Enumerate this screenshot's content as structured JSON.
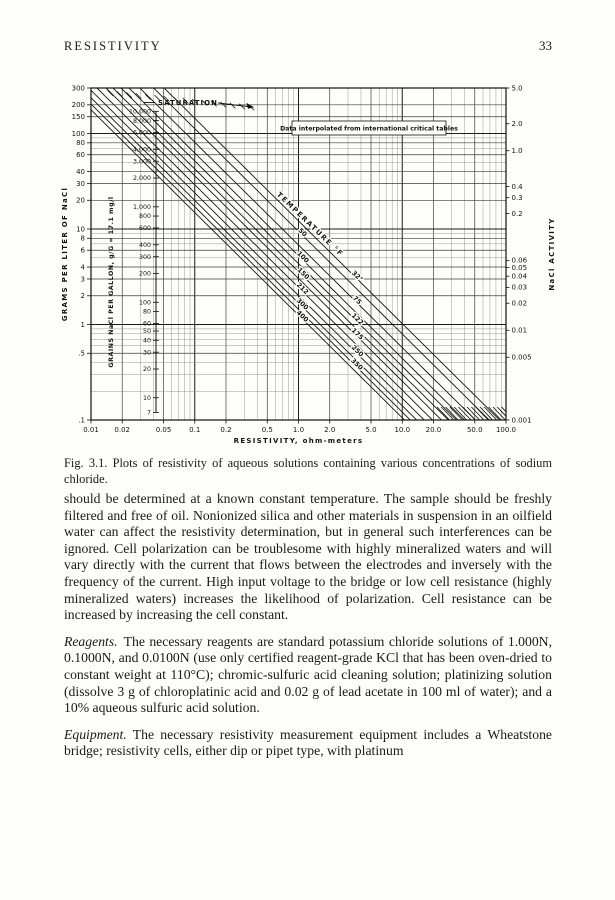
{
  "page": {
    "header": "RESISTIVITY",
    "page_number": "33"
  },
  "figure": {
    "caption": "Fig. 3.1. Plots of resistivity of aqueous solutions containing various concentrations of sodium chloride."
  },
  "paragraphs": [
    {
      "lead": "",
      "text": "should be determined at a known constant temperature. The sample should be freshly filtered and free of oil. Nonionized silica and other materials in suspension in an oilfield water can affect the resistivity determination, but in general such interferences can be ignored. Cell polarization can be troublesome with highly mineralized waters and will vary directly with the current that flows between the electrodes and inversely with the frequency of the current. High input voltage to the bridge or low cell resistance (highly mineralized waters) increases the likelihood of polarization. Cell resistance can be increased by increasing the cell constant."
    },
    {
      "lead": "Reagents.",
      "text": "The necessary reagents are standard potassium chloride solutions of 1.000N, 0.1000N, and 0.0100N (use only certified reagent-grade KCl that has been oven-dried to constant weight at 110°C); chromic-sulfuric acid cleaning solution; platinizing solution (dissolve 3 g of chloroplatinic acid and 0.02 g of lead acetate in 100 ml of water); and a 10% aqueous sulfuric acid solution."
    },
    {
      "lead": "Equipment.",
      "text": "The necessary resistivity measurement equipment includes a Wheatstone bridge; resistivity cells, either dip or pipet type, with platinum"
    }
  ],
  "chart_data": {
    "type": "line",
    "title": "",
    "note": "Data interpolated from international critical tables",
    "saturation_label": "SATURATION",
    "xlabel": "RESISTIVITY, ohm-meters",
    "xlim": [
      0.01,
      100
    ],
    "x_scale": "log",
    "x_ticks": [
      {
        "v": 0.01,
        "label": "0.01"
      },
      {
        "v": 0.02,
        "label": "0.02"
      },
      {
        "v": 0.05,
        "label": "0.05"
      },
      {
        "v": 0.1,
        "label": "0.1"
      },
      {
        "v": 0.2,
        "label": "0.2"
      },
      {
        "v": 0.5,
        "label": "0.5"
      },
      {
        "v": 1,
        "label": "1.0"
      },
      {
        "v": 2,
        "label": "2.0"
      },
      {
        "v": 5,
        "label": "5.0"
      },
      {
        "v": 10,
        "label": "10.0"
      },
      {
        "v": 20,
        "label": "20.0"
      },
      {
        "v": 50,
        "label": "50.0"
      },
      {
        "v": 100,
        "label": "100.0"
      }
    ],
    "y_left_label": "GRAMS PER LITER OF NaCl",
    "ylim_left": [
      0.1,
      300
    ],
    "y_scale": "log",
    "y_left_ticks": [
      {
        "v": 300,
        "label": "300"
      },
      {
        "v": 200,
        "label": "200"
      },
      {
        "v": 150,
        "label": "150"
      },
      {
        "v": 100,
        "label": "100"
      },
      {
        "v": 80,
        "label": "80"
      },
      {
        "v": 60,
        "label": "60"
      },
      {
        "v": 40,
        "label": "40"
      },
      {
        "v": 30,
        "label": "30"
      },
      {
        "v": 20,
        "label": "20"
      },
      {
        "v": 10,
        "label": "10"
      },
      {
        "v": 8,
        "label": "8"
      },
      {
        "v": 6,
        "label": "6"
      },
      {
        "v": 4,
        "label": "4"
      },
      {
        "v": 3,
        "label": "3"
      },
      {
        "v": 2,
        "label": "2"
      },
      {
        "v": 1,
        "label": "1"
      },
      {
        "v": 0.5,
        "label": ".5"
      },
      {
        "v": 0.1,
        "label": ".1"
      }
    ],
    "grains_scale_label": "GRAINS NaCl PER GALLON, g/G = 17.1 mg/l",
    "grains_to_gpl_factor": 0.0171,
    "grains_ticks": [
      {
        "v": 10000,
        "label": "10,000"
      },
      {
        "v": 8000,
        "label": "8,000"
      },
      {
        "v": 6000,
        "label": "6,000"
      },
      {
        "v": 4000,
        "label": "4,000"
      },
      {
        "v": 3000,
        "label": "3,000"
      },
      {
        "v": 2000,
        "label": "2,000"
      },
      {
        "v": 1000,
        "label": "1,000"
      },
      {
        "v": 800,
        "label": "800"
      },
      {
        "v": 600,
        "label": "600"
      },
      {
        "v": 400,
        "label": "400"
      },
      {
        "v": 300,
        "label": "300"
      },
      {
        "v": 200,
        "label": "200"
      },
      {
        "v": 100,
        "label": "100"
      },
      {
        "v": 80,
        "label": "80"
      },
      {
        "v": 60,
        "label": "60"
      },
      {
        "v": 50,
        "label": "50"
      },
      {
        "v": 40,
        "label": "40"
      },
      {
        "v": 30,
        "label": "30"
      },
      {
        "v": 20,
        "label": "20"
      },
      {
        "v": 10,
        "label": "10"
      },
      {
        "v": 7,
        "label": "7"
      }
    ],
    "y_right_label": "NaCl ACTIVITY",
    "ylim_right": [
      0.001,
      5.0
    ],
    "y_right_ticks": [
      {
        "v": 5,
        "label": "5.0"
      },
      {
        "v": 2,
        "label": "2.0"
      },
      {
        "v": 1,
        "label": "1.0"
      },
      {
        "v": 0.4,
        "label": "0.4"
      },
      {
        "v": 0.3,
        "label": "0.3"
      },
      {
        "v": 0.2,
        "label": "0.2"
      },
      {
        "v": 0.06,
        "label": "0.06"
      },
      {
        "v": 0.05,
        "label": "0.05"
      },
      {
        "v": 0.04,
        "label": "0.04"
      },
      {
        "v": 0.03,
        "label": "0.03"
      },
      {
        "v": 0.02,
        "label": "0.02"
      },
      {
        "v": 0.01,
        "label": "0.01"
      },
      {
        "v": 0.005,
        "label": "0.005"
      },
      {
        "v": 0.001,
        "label": "0.001"
      }
    ],
    "temperature_label": {
      "text": "TEMPERATURE °F",
      "on_curve": "32°",
      "c": 10
    },
    "slope_exponent": 0.93,
    "series_note": "temperature curves °F; r10 = resistivity (ohm-m) read at 10 g/l NaCl; label_c = g/l positions of on-curve labels",
    "series": [
      {
        "label": "32°",
        "r10": 1.2,
        "label_c": [
          3.1
        ]
      },
      {
        "label": "50",
        "r10": 0.95,
        "label_c": [
          8.9
        ]
      },
      {
        "label": "75",
        "r10": 0.7,
        "label_c": [
          1.74
        ]
      },
      {
        "label": "100",
        "r10": 0.55,
        "label_c": [
          4.9
        ]
      },
      {
        "label": "122",
        "r10": 0.46,
        "label_c": [
          1.1
        ]
      },
      {
        "label": "150",
        "r10": 0.385,
        "label_c": [
          3.3
        ]
      },
      {
        "label": "175",
        "r10": 0.33,
        "label_c": [
          0.77
        ]
      },
      {
        "label": "212",
        "r10": 0.27,
        "label_c": [
          2.3
        ]
      },
      {
        "label": "250",
        "r10": 0.225,
        "label_c": [
          0.51
        ]
      },
      {
        "label": "300",
        "r10": 0.19,
        "label_c": [
          1.58
        ]
      },
      {
        "label": "350",
        "r10": 0.165,
        "label_c": [
          0.37
        ]
      },
      {
        "label": "400",
        "r10": 0.145,
        "label_c": [
          1.18
        ]
      }
    ],
    "legend_position": "none",
    "grid": true
  }
}
